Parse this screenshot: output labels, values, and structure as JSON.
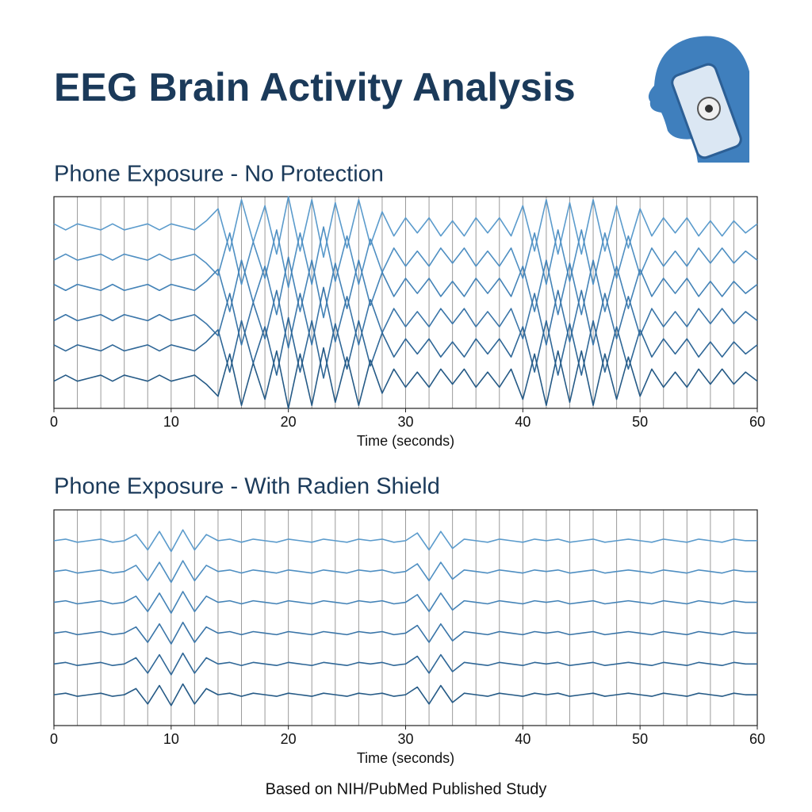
{
  "header": {
    "title": "EEG Brain Activity Analysis"
  },
  "chart_data": [
    {
      "type": "line",
      "title": "Phone Exposure - No Protection",
      "xlabel": "Time (seconds)",
      "xlim": [
        0,
        60
      ],
      "xticks": [
        0,
        10,
        20,
        30,
        40,
        50,
        60
      ],
      "xgrid": [
        0,
        2,
        4,
        6,
        8,
        10,
        12,
        14,
        16,
        18,
        20,
        22,
        24,
        26,
        28,
        30,
        32,
        34,
        36,
        38,
        40,
        42,
        44,
        46,
        48,
        50,
        52,
        54,
        56,
        58,
        60
      ],
      "ylim": [
        0,
        7
      ],
      "x": [
        0,
        1,
        2,
        3,
        4,
        5,
        6,
        7,
        8,
        9,
        10,
        11,
        12,
        13,
        14,
        15,
        16,
        17,
        18,
        19,
        20,
        21,
        22,
        23,
        24,
        25,
        26,
        27,
        28,
        29,
        30,
        31,
        32,
        33,
        34,
        35,
        36,
        37,
        38,
        39,
        40,
        41,
        42,
        43,
        44,
        45,
        46,
        47,
        48,
        49,
        50,
        51,
        52,
        53,
        54,
        55,
        56,
        57,
        58,
        59,
        60
      ],
      "series": [
        {
          "color": "#5b9bcc",
          "values": [
            6.1,
            5.9,
            6.1,
            6,
            5.9,
            6.1,
            5.9,
            6,
            6.1,
            5.9,
            6.1,
            6,
            5.9,
            6.2,
            6.6,
            5.2,
            6.9,
            5.5,
            6.7,
            5.1,
            7,
            5.2,
            6.9,
            5,
            6.8,
            5.3,
            6.9,
            5.4,
            6.5,
            5.7,
            6.3,
            5.8,
            6.3,
            5.7,
            6.2,
            5.7,
            6.3,
            5.8,
            6.3,
            5.7,
            6.7,
            5.2,
            6.9,
            5.1,
            6.8,
            5.1,
            6.9,
            5.2,
            6.7,
            5.3,
            6.6,
            5.7,
            6.3,
            5.8,
            6.3,
            5.7,
            6.2,
            5.7,
            6.2,
            5.8,
            6.1
          ]
        },
        {
          "color": "#4f8fc2",
          "values": [
            4.9,
            5.1,
            4.9,
            5,
            5.1,
            4.9,
            5.1,
            5,
            4.9,
            5.1,
            4.9,
            5,
            5.1,
            4.8,
            4.4,
            5.8,
            4.1,
            5.5,
            4.3,
            5.9,
            4,
            5.8,
            4.1,
            6,
            4.2,
            5.7,
            4.1,
            5.6,
            4.5,
            5.3,
            4.7,
            5.2,
            4.7,
            5.3,
            4.8,
            5.3,
            4.7,
            5.2,
            4.7,
            5.3,
            4.3,
            5.8,
            4.1,
            5.9,
            4.2,
            5.9,
            4.1,
            5.8,
            4.3,
            5.7,
            4.4,
            5.3,
            4.7,
            5.2,
            4.7,
            5.3,
            4.8,
            5.3,
            4.8,
            5.2,
            4.9
          ]
        },
        {
          "color": "#4483b7",
          "values": [
            4.1,
            3.9,
            4.1,
            4,
            3.9,
            4.1,
            3.9,
            4,
            4.1,
            3.9,
            4.1,
            4,
            3.9,
            4.2,
            4.6,
            3.2,
            4.9,
            3.5,
            4.7,
            3.1,
            5,
            3.2,
            4.9,
            3,
            4.8,
            3.3,
            4.9,
            3.4,
            4.5,
            3.7,
            4.3,
            3.8,
            4.3,
            3.7,
            4.2,
            3.7,
            4.3,
            3.8,
            4.3,
            3.7,
            4.7,
            3.2,
            4.9,
            3.1,
            4.8,
            3.1,
            4.9,
            3.2,
            4.7,
            3.3,
            4.6,
            3.7,
            4.3,
            3.8,
            4.3,
            3.7,
            4.2,
            3.7,
            4.2,
            3.8,
            4.1
          ]
        },
        {
          "color": "#3a75a8",
          "values": [
            2.9,
            3.1,
            2.9,
            3,
            3.1,
            2.9,
            3.1,
            3,
            2.9,
            3.1,
            2.9,
            3,
            3.1,
            2.8,
            2.4,
            3.8,
            2.1,
            3.5,
            2.3,
            3.9,
            2,
            3.8,
            2.1,
            4,
            2.2,
            3.7,
            2.1,
            3.6,
            2.5,
            3.3,
            2.7,
            3.2,
            2.7,
            3.3,
            2.8,
            3.3,
            2.7,
            3.2,
            2.7,
            3.3,
            2.3,
            3.8,
            2.1,
            3.9,
            2.2,
            3.9,
            2.1,
            3.8,
            2.3,
            3.7,
            2.4,
            3.3,
            2.7,
            3.2,
            2.7,
            3.3,
            2.8,
            3.3,
            2.8,
            3.2,
            2.9
          ]
        },
        {
          "color": "#2f6797",
          "values": [
            2.1,
            1.9,
            2.1,
            2,
            1.9,
            2.1,
            1.9,
            2,
            2.1,
            1.9,
            2.1,
            2,
            1.9,
            2.2,
            2.6,
            1.2,
            2.9,
            1.5,
            2.7,
            1.1,
            3,
            1.2,
            2.9,
            1,
            2.8,
            1.3,
            2.9,
            1.4,
            2.5,
            1.7,
            2.3,
            1.8,
            2.3,
            1.7,
            2.2,
            1.7,
            2.3,
            1.8,
            2.3,
            1.7,
            2.7,
            1.2,
            2.9,
            1.1,
            2.8,
            1.1,
            2.9,
            1.2,
            2.7,
            1.3,
            2.6,
            1.7,
            2.3,
            1.8,
            2.3,
            1.7,
            2.2,
            1.7,
            2.2,
            1.8,
            2.1
          ]
        },
        {
          "color": "#255a86",
          "values": [
            0.9,
            1.1,
            0.9,
            1,
            1.1,
            0.9,
            1.1,
            1,
            0.9,
            1.1,
            0.9,
            1,
            1.1,
            0.8,
            0.4,
            1.8,
            0.1,
            1.5,
            0.3,
            1.9,
            0,
            1.8,
            0.1,
            2,
            0.2,
            1.7,
            0.1,
            1.6,
            0.5,
            1.3,
            0.7,
            1.2,
            0.7,
            1.3,
            0.8,
            1.3,
            0.7,
            1.2,
            0.7,
            1.3,
            0.3,
            1.8,
            0.1,
            1.9,
            0.2,
            1.9,
            0.1,
            1.8,
            0.3,
            1.7,
            0.4,
            1.3,
            0.7,
            1.2,
            0.7,
            1.3,
            0.8,
            1.3,
            0.8,
            1.2,
            0.9
          ]
        }
      ]
    },
    {
      "type": "line",
      "title": "Phone Exposure - With Radien Shield",
      "xlabel": "Time (seconds)",
      "xlim": [
        0,
        60
      ],
      "xticks": [
        0,
        10,
        20,
        30,
        40,
        50,
        60
      ],
      "xgrid": [
        0,
        2,
        4,
        6,
        8,
        10,
        12,
        14,
        16,
        18,
        20,
        22,
        24,
        26,
        28,
        30,
        32,
        34,
        36,
        38,
        40,
        42,
        44,
        46,
        48,
        50,
        52,
        54,
        56,
        58,
        60
      ],
      "ylim": [
        0,
        7
      ],
      "x": [
        0,
        1,
        2,
        3,
        4,
        5,
        6,
        7,
        8,
        9,
        10,
        11,
        12,
        13,
        14,
        15,
        16,
        17,
        18,
        19,
        20,
        21,
        22,
        23,
        24,
        25,
        26,
        27,
        28,
        29,
        30,
        31,
        32,
        33,
        34,
        35,
        36,
        37,
        38,
        39,
        40,
        41,
        42,
        43,
        44,
        45,
        46,
        47,
        48,
        49,
        50,
        51,
        52,
        53,
        54,
        55,
        56,
        57,
        58,
        59,
        60
      ],
      "series": [
        {
          "color": "#5b9bcc",
          "values": [
            6,
            6.05,
            5.95,
            6,
            6.05,
            5.95,
            6,
            6.2,
            5.7,
            6.3,
            5.65,
            6.35,
            5.7,
            6.2,
            6,
            6.05,
            5.95,
            6.05,
            6,
            5.95,
            6.05,
            6,
            5.95,
            6.05,
            6,
            5.95,
            6.05,
            6,
            6.05,
            5.95,
            6,
            6.25,
            5.7,
            6.3,
            5.75,
            6.05,
            6,
            5.95,
            6.05,
            6,
            5.95,
            6.05,
            6,
            6.05,
            5.95,
            6,
            6.05,
            5.95,
            6,
            6.05,
            6,
            5.95,
            6.05,
            6,
            5.95,
            6.05,
            6,
            5.95,
            6.05,
            6,
            6
          ]
        },
        {
          "color": "#4f8fc2",
          "values": [
            5,
            5.05,
            4.95,
            5,
            5.05,
            4.95,
            5,
            5.2,
            4.7,
            5.3,
            4.65,
            5.35,
            4.7,
            5.2,
            5,
            5.05,
            4.95,
            5.05,
            5,
            4.95,
            5.05,
            5,
            4.95,
            5.05,
            5,
            4.95,
            5.05,
            5,
            5.05,
            4.95,
            5,
            5.25,
            4.7,
            5.3,
            4.75,
            5.05,
            5,
            4.95,
            5.05,
            5,
            4.95,
            5.05,
            5,
            5.05,
            4.95,
            5,
            5.05,
            4.95,
            5,
            5.05,
            5,
            4.95,
            5.05,
            5,
            4.95,
            5.05,
            5,
            4.95,
            5.05,
            5,
            5
          ]
        },
        {
          "color": "#4483b7",
          "values": [
            4,
            4.05,
            3.95,
            4,
            4.05,
            3.95,
            4,
            4.2,
            3.7,
            4.3,
            3.65,
            4.35,
            3.7,
            4.2,
            4,
            4.05,
            3.95,
            4.05,
            4,
            3.95,
            4.05,
            4,
            3.95,
            4.05,
            4,
            3.95,
            4.05,
            4,
            4.05,
            3.95,
            4,
            4.25,
            3.7,
            4.3,
            3.75,
            4.05,
            4,
            3.95,
            4.05,
            4,
            3.95,
            4.05,
            4,
            4.05,
            3.95,
            4,
            4.05,
            3.95,
            4,
            4.05,
            4,
            3.95,
            4.05,
            4,
            3.95,
            4.05,
            4,
            3.95,
            4.05,
            4,
            4
          ]
        },
        {
          "color": "#3a75a8",
          "values": [
            3,
            3.05,
            2.95,
            3,
            3.05,
            2.95,
            3,
            3.2,
            2.7,
            3.3,
            2.65,
            3.35,
            2.7,
            3.2,
            3,
            3.05,
            2.95,
            3.05,
            3,
            2.95,
            3.05,
            3,
            2.95,
            3.05,
            3,
            2.95,
            3.05,
            3,
            3.05,
            2.95,
            3,
            3.25,
            2.7,
            3.3,
            2.75,
            3.05,
            3,
            2.95,
            3.05,
            3,
            2.95,
            3.05,
            3,
            3.05,
            2.95,
            3,
            3.05,
            2.95,
            3,
            3.05,
            3,
            2.95,
            3.05,
            3,
            2.95,
            3.05,
            3,
            2.95,
            3.05,
            3,
            3
          ]
        },
        {
          "color": "#2f6797",
          "values": [
            2,
            2.05,
            1.95,
            2,
            2.05,
            1.95,
            2,
            2.2,
            1.7,
            2.3,
            1.65,
            2.35,
            1.7,
            2.2,
            2,
            2.05,
            1.95,
            2.05,
            2,
            1.95,
            2.05,
            2,
            1.95,
            2.05,
            2,
            1.95,
            2.05,
            2,
            2.05,
            1.95,
            2,
            2.25,
            1.7,
            2.3,
            1.75,
            2.05,
            2,
            1.95,
            2.05,
            2,
            1.95,
            2.05,
            2,
            2.05,
            1.95,
            2,
            2.05,
            1.95,
            2,
            2.05,
            2,
            1.95,
            2.05,
            2,
            1.95,
            2.05,
            2,
            1.95,
            2.05,
            2,
            2
          ]
        },
        {
          "color": "#255a86",
          "values": [
            1,
            1.05,
            0.95,
            1,
            1.05,
            0.95,
            1,
            1.2,
            0.7,
            1.3,
            0.65,
            1.35,
            0.7,
            1.2,
            1,
            1.05,
            0.95,
            1.05,
            1,
            0.95,
            1.05,
            1,
            0.95,
            1.05,
            1,
            0.95,
            1.05,
            1,
            1.05,
            0.95,
            1,
            1.25,
            0.7,
            1.3,
            0.75,
            1.05,
            1,
            0.95,
            1.05,
            1,
            0.95,
            1.05,
            1,
            1.05,
            0.95,
            1,
            1.05,
            0.95,
            1,
            1.05,
            1,
            0.95,
            1.05,
            1,
            0.95,
            1.05,
            1,
            0.95,
            1.05,
            1,
            1
          ]
        }
      ]
    }
  ],
  "footer": "Based on NIH/PubMed Published Study"
}
